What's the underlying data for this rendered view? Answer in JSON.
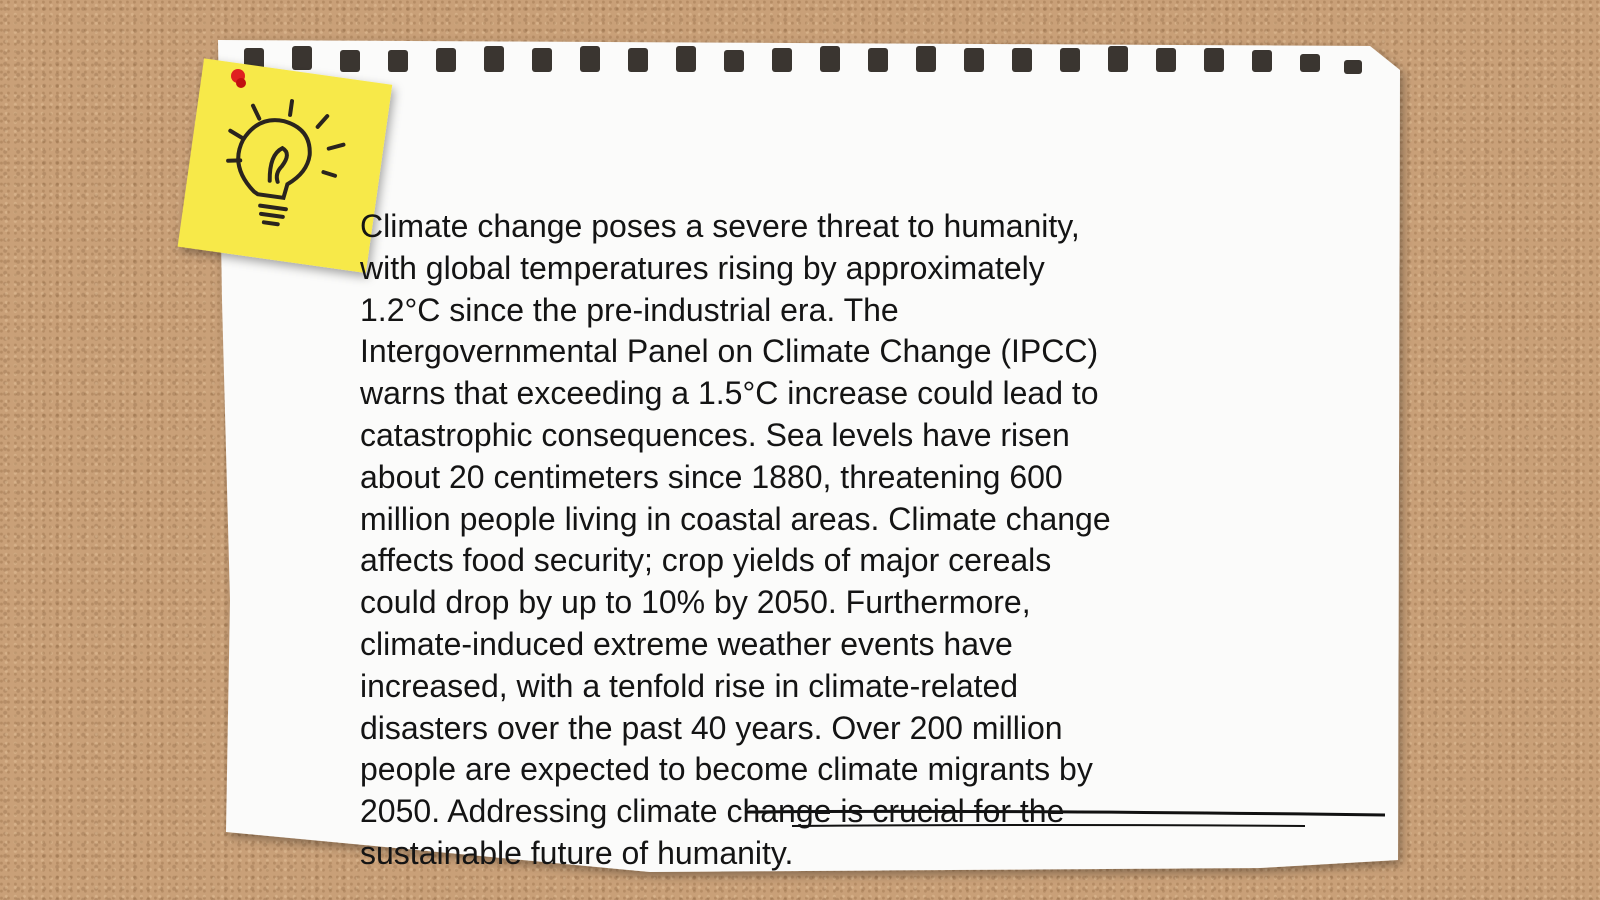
{
  "note": {
    "lines": [
      "Climate change poses a severe threat to humanity,",
      "with global temperatures rising by approximately",
      "1.2°C since the pre-industrial era. The",
      "Intergovernmental Panel on Climate Change (IPCC)",
      "warns that exceeding a 1.5°C increase could lead to",
      "catastrophic consequences. Sea levels have risen",
      "about 20 centimeters since 1880, threatening 600",
      "million people living in coastal areas. Climate change",
      "affects food security; crop yields of major cereals",
      "could drop by up to 10% by 2050. Furthermore,",
      "climate-induced extreme weather events have",
      "increased, with a tenfold rise in climate-related",
      "disasters over the past 40 years. Over 200 million",
      "people are expected to become climate migrants by",
      "2050. Addressing climate change is crucial for the",
      "sustainable future of humanity."
    ]
  }
}
